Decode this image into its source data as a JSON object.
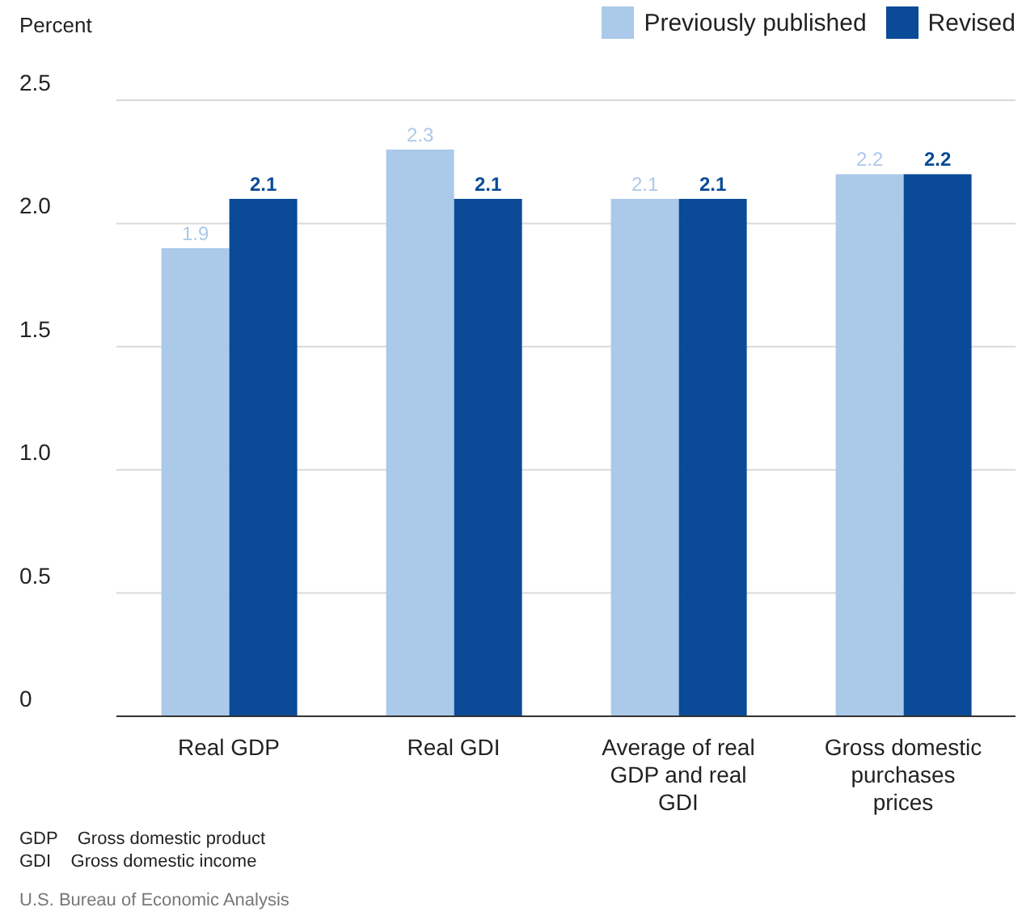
{
  "chart_data": {
    "type": "bar",
    "ylabel": "Percent",
    "categories": [
      "Real GDP",
      "Real GDI",
      "Average of real GDP and real GDI",
      "Gross domestic purchases prices"
    ],
    "series": [
      {
        "name": "Previously published",
        "color": "#abc9e9",
        "values": [
          1.9,
          2.3,
          2.1,
          2.2
        ]
      },
      {
        "name": "Revised",
        "color": "#0a4a97",
        "values": [
          2.1,
          2.1,
          2.1,
          2.2
        ]
      }
    ],
    "ylim": [
      0,
      2.5
    ],
    "yticks": [
      {
        "value": 0,
        "label": "0"
      },
      {
        "value": 0.5,
        "label": "0.5"
      },
      {
        "value": 1,
        "label": "1.0"
      },
      {
        "value": 1.5,
        "label": "1.5"
      },
      {
        "value": 2,
        "label": "2.0"
      },
      {
        "value": 2.5,
        "label": "2.5"
      }
    ],
    "grid": "y",
    "legend": "top right",
    "data_labels": true,
    "annotations": [
      "GDP    Gross domestic product",
      "GDI    Gross domestic income",
      "U.S. Bureau of Economic Analysis"
    ]
  }
}
